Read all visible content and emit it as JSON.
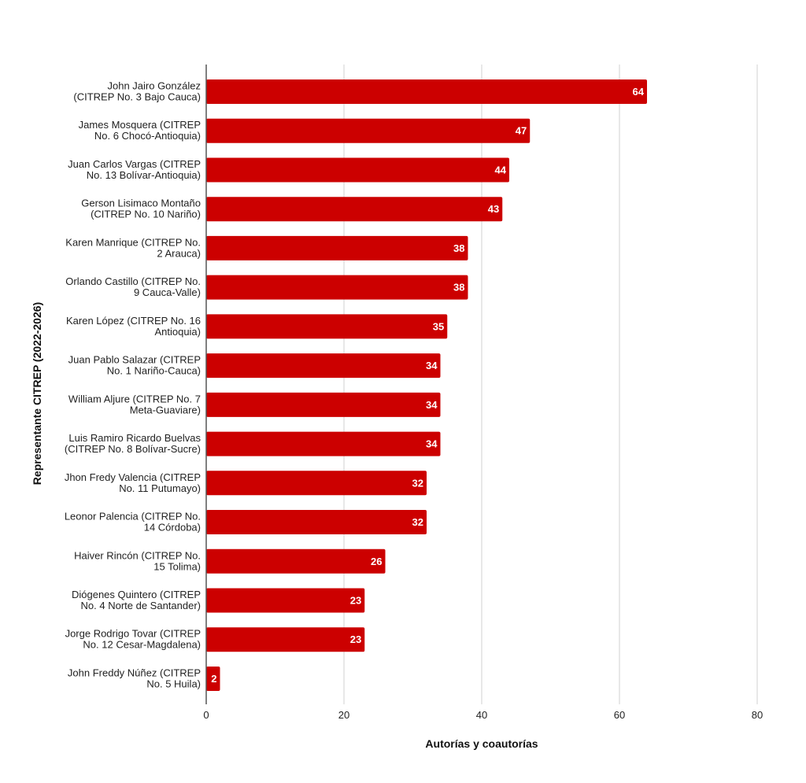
{
  "chart_data": {
    "type": "bar",
    "orientation": "horizontal",
    "title": "",
    "xlabel": "Autorías y coautorías",
    "ylabel": "Representante CITREP (2022-2026)",
    "xlim": [
      0,
      80
    ],
    "xticks": [
      0,
      20,
      40,
      60,
      80
    ],
    "grid": true,
    "bar_color": "#cc0000",
    "categories": [
      [
        "John Jairo González",
        "(CITREP No. 3 Bajo Cauca)"
      ],
      [
        "James Mosquera (CITREP",
        "No. 6 Chocó-Antioquia)"
      ],
      [
        "Juan Carlos Vargas (CITREP",
        "No. 13 Bolívar-Antioquia)"
      ],
      [
        "Gerson Lisimaco Montaño",
        "(CITREP No. 10 Nariño)"
      ],
      [
        "Karen Manrique (CITREP No.",
        "2 Arauca)"
      ],
      [
        "Orlando Castillo (CITREP No.",
        "9 Cauca-Valle)"
      ],
      [
        "Karen López (CITREP No. 16",
        "Antioquia)"
      ],
      [
        "Juan Pablo Salazar (CITREP",
        "No. 1 Nariño-Cauca)"
      ],
      [
        "William Aljure (CITREP No. 7",
        "Meta-Guaviare)"
      ],
      [
        "Luis Ramiro Ricardo Buelvas",
        "(CITREP No. 8 Bolívar-Sucre)"
      ],
      [
        "Jhon Fredy Valencia (CITREP",
        "No. 11 Putumayo)"
      ],
      [
        "Leonor Palencia (CITREP No.",
        "14 Córdoba)"
      ],
      [
        "Haiver Rincón (CITREP No.",
        "15 Tolima)"
      ],
      [
        "Diógenes Quintero (CITREP",
        "No. 4 Norte de Santander)"
      ],
      [
        "Jorge Rodrigo Tovar (CITREP",
        "No. 12 Cesar-Magdalena)"
      ],
      [
        "John Freddy Núñez (CITREP",
        "No. 5 Huila)"
      ]
    ],
    "values": [
      64,
      47,
      44,
      43,
      38,
      38,
      35,
      34,
      34,
      34,
      32,
      32,
      26,
      23,
      23,
      2
    ]
  }
}
